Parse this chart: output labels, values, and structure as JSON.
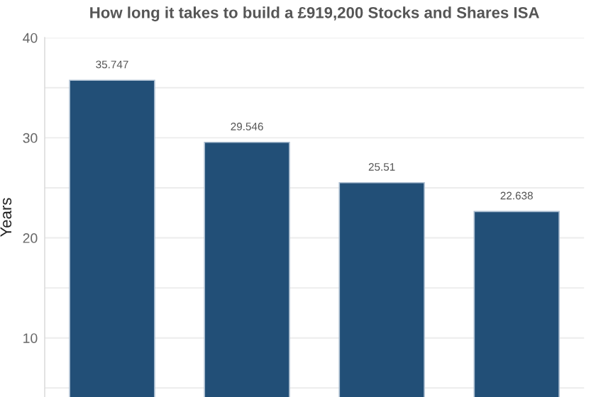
{
  "chart_data": {
    "type": "bar",
    "title": "How long it takes to build a £919,200 Stocks and Shares ISA",
    "ylabel": "Years",
    "categories": [
      null,
      null,
      null,
      null
    ],
    "values": [
      35.747,
      29.546,
      25.51,
      22.638
    ],
    "color": "#224f77",
    "data_labels": true,
    "ylim": [
      4.1,
      40
    ],
    "yticks": [
      {
        "value": 5,
        "label": null
      },
      10,
      {
        "value": 15,
        "label": null
      },
      20,
      {
        "value": 25,
        "label": null
      },
      30,
      {
        "value": 35,
        "label": null
      },
      40
    ],
    "grid": "y",
    "tick_labels": "y"
  }
}
